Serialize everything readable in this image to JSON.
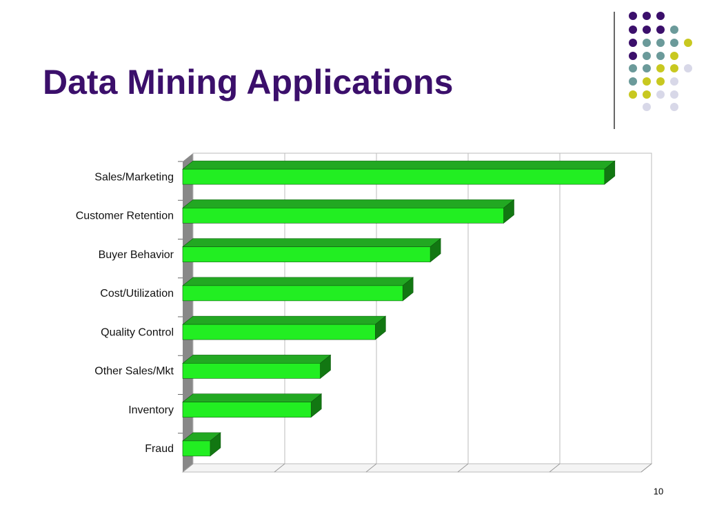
{
  "slide_title": "Data Mining Applications",
  "page_number": "10",
  "chart_data": {
    "type": "bar3d_horizontal",
    "categories": [
      "Sales/Marketing",
      "Customer Retention",
      "Buyer Behavior",
      "Cost/Utilization",
      "Quality Control",
      "Other Sales/Mkt",
      "Inventory",
      "Fraud"
    ],
    "values": [
      4.6,
      3.5,
      2.7,
      2.4,
      2.1,
      1.5,
      1.4,
      0.3
    ],
    "color": "#22ee22",
    "xlim": [
      0,
      5
    ],
    "xticks": [
      0,
      1,
      2,
      3,
      4,
      5
    ],
    "tick_labels": false,
    "grid": true
  }
}
